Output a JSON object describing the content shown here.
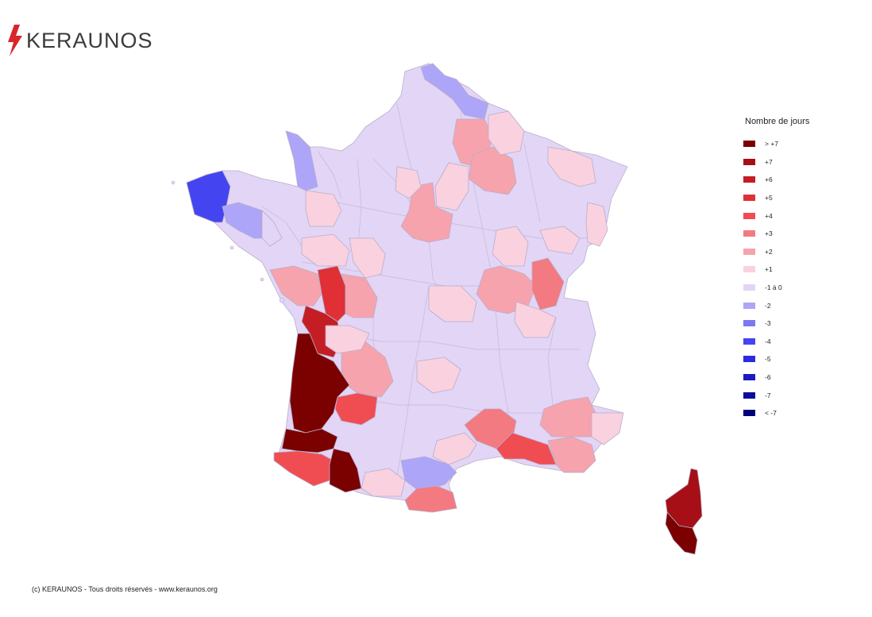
{
  "brand": {
    "name": "KERAUNOS",
    "logo_icon": "lightning-bolt-icon",
    "bolt_color": "#d7262c"
  },
  "legend": {
    "title": "Nombre de jours",
    "items": [
      {
        "label": "> +7",
        "color": "#7b0000"
      },
      {
        "label": "+7",
        "color": "#a50f15"
      },
      {
        "label": "+6",
        "color": "#c41e24"
      },
      {
        "label": "+5",
        "color": "#e03035"
      },
      {
        "label": "+4",
        "color": "#f04d52"
      },
      {
        "label": "+3",
        "color": "#f37a80"
      },
      {
        "label": "+2",
        "color": "#f6a3ad"
      },
      {
        "label": "+1",
        "color": "#fad1df"
      },
      {
        "label": "-1 à 0",
        "color": "#e2d5f6"
      },
      {
        "label": "-2",
        "color": "#ada5f8"
      },
      {
        "label": "-3",
        "color": "#7c78ef"
      },
      {
        "label": "-4",
        "color": "#4444f0"
      },
      {
        "label": "-5",
        "color": "#2b2be0"
      },
      {
        "label": "-6",
        "color": "#1b1bc0"
      },
      {
        "label": "-7",
        "color": "#0d0d9c"
      },
      {
        "label": "< -7",
        "color": "#00007a"
      }
    ]
  },
  "map": {
    "base_color": "#e2d5f6",
    "border_color": "#b3aac0",
    "highlighted_regions": [
      {
        "name": "finistere",
        "class": "-4"
      },
      {
        "name": "cotes-darmor",
        "class": "-2"
      },
      {
        "name": "manche",
        "class": "-2"
      },
      {
        "name": "nord",
        "class": "-2"
      },
      {
        "name": "aisne",
        "class": "+2"
      },
      {
        "name": "marne",
        "class": "+2"
      },
      {
        "name": "loiret",
        "class": "+2"
      },
      {
        "name": "charente-maritime",
        "class": "+2"
      },
      {
        "name": "deux-sevres",
        "class": "+5"
      },
      {
        "name": "vienne",
        "class": "+2"
      },
      {
        "name": "charente",
        "class": "+6"
      },
      {
        "name": "dordogne",
        "class": "+2"
      },
      {
        "name": "lot-et-garonne",
        "class": "+4"
      },
      {
        "name": "gironde",
        "class": "> +7"
      },
      {
        "name": "landes",
        "class": "> +7"
      },
      {
        "name": "pyrenees-atlantiques",
        "class": "+4"
      },
      {
        "name": "hautes-pyrenees",
        "class": "> +7"
      },
      {
        "name": "aude",
        "class": "-2"
      },
      {
        "name": "pyrenees-orientales",
        "class": "+3"
      },
      {
        "name": "saone-et-loire",
        "class": "+2"
      },
      {
        "name": "ain",
        "class": "+3"
      },
      {
        "name": "gard",
        "class": "+3"
      },
      {
        "name": "bouches-du-rhone",
        "class": "+4"
      },
      {
        "name": "var",
        "class": "+2"
      },
      {
        "name": "alpes-de-haute-provence",
        "class": "+2"
      },
      {
        "name": "haute-corse",
        "class": "+7"
      },
      {
        "name": "corse-du-sud",
        "class": "> +7"
      }
    ]
  },
  "footer": {
    "copyright": "(c) KERAUNOS - Tous droits réservés - www.keraunos.org"
  }
}
